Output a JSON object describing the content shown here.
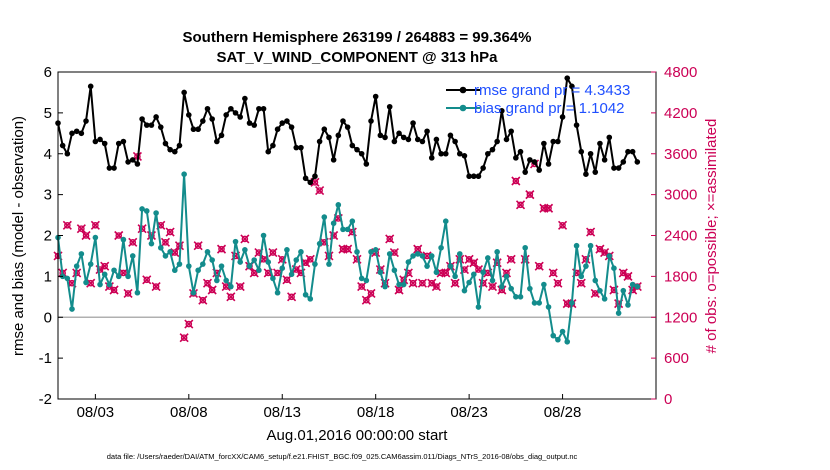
{
  "title_line1": "Southern Hemisphere 263199 / 264883 = 99.364%",
  "title_line2": "SAT_V_WIND_COMPONENT @ 313 hPa",
  "footer": "data file: /Users/raeder/DAI/ATM_forcXX/CAM6_setup/f.e21.FHIST_BGC.f09_025.CAM6assim.011/Diags_NTrS_2016-08/obs_diag_output.nc",
  "chart_data": {
    "type": "line",
    "xlabel": "Aug.01,2016 00:00:00 start",
    "ylabel": "rmse and bias (model - observation)",
    "y2label": "# of obs: o=possible; ×=assimilated",
    "xlim": [
      1,
      33
    ],
    "ylim": [
      -2,
      6
    ],
    "y2lim": [
      0,
      4800
    ],
    "x_tick_labels": [
      "08/03",
      "08/08",
      "08/13",
      "08/18",
      "08/23",
      "08/28"
    ],
    "x_tick_values": [
      3,
      8,
      13,
      18,
      23,
      28
    ],
    "y_ticks": [
      "-2",
      "-1",
      "0",
      "1",
      "2",
      "3",
      "4",
      "5",
      "6"
    ],
    "y2_ticks": [
      "0",
      "600",
      "1200",
      "1800",
      "2400",
      "3000",
      "3600",
      "4200",
      "4800"
    ],
    "legend_position": "top-right",
    "series": [
      {
        "name": "rmse grand pr = 4.3433",
        "color": "#000000",
        "x": [
          1.0,
          1.25,
          1.5,
          1.75,
          2.0,
          2.25,
          2.5,
          2.75,
          3.0,
          3.25,
          3.5,
          3.75,
          4.0,
          4.25,
          4.5,
          4.75,
          5.0,
          5.25,
          5.5,
          5.75,
          6.0,
          6.25,
          6.5,
          6.75,
          7.0,
          7.25,
          7.5,
          7.75,
          8.0,
          8.25,
          8.5,
          8.75,
          9.0,
          9.25,
          9.5,
          9.75,
          10.0,
          10.25,
          10.5,
          10.75,
          11.0,
          11.25,
          11.5,
          11.75,
          12.0,
          12.25,
          12.5,
          12.75,
          13.0,
          13.25,
          13.5,
          13.75,
          14.0,
          14.25,
          14.5,
          14.75,
          15.0,
          15.25,
          15.5,
          15.75,
          16.0,
          16.25,
          16.5,
          16.75,
          17.0,
          17.25,
          17.5,
          17.75,
          18.0,
          18.25,
          18.5,
          18.75,
          19.0,
          19.25,
          19.5,
          19.75,
          20.0,
          20.25,
          20.5,
          20.75,
          21.0,
          21.25,
          21.5,
          21.75,
          22.0,
          22.25,
          22.5,
          22.75,
          23.0,
          23.25,
          23.5,
          23.75,
          24.0,
          24.25,
          24.5,
          24.75,
          25.0,
          25.25,
          25.5,
          25.75,
          26.0,
          26.25,
          26.5,
          26.75,
          27.0,
          27.25,
          27.5,
          27.75,
          28.0,
          28.25,
          28.5,
          28.75,
          29.0,
          29.25,
          29.5,
          29.75,
          30.0,
          30.25,
          30.5,
          30.75,
          31.0,
          31.25,
          31.5,
          31.75,
          32.0
        ],
        "values": [
          4.75,
          4.2,
          4.0,
          4.5,
          4.55,
          4.5,
          4.8,
          5.65,
          4.3,
          4.35,
          4.25,
          3.65,
          3.65,
          4.25,
          4.3,
          3.8,
          3.85,
          3.75,
          4.85,
          4.7,
          4.7,
          4.9,
          4.65,
          4.25,
          4.1,
          4.05,
          4.2,
          5.5,
          4.95,
          4.6,
          4.6,
          4.8,
          5.1,
          4.85,
          4.3,
          4.45,
          4.95,
          5.1,
          5.0,
          4.9,
          5.35,
          4.75,
          4.7,
          5.1,
          5.1,
          4.05,
          4.2,
          4.6,
          4.75,
          4.8,
          4.65,
          4.15,
          4.15,
          3.4,
          3.3,
          3.45,
          4.3,
          4.6,
          4.4,
          3.85,
          4.45,
          4.8,
          4.65,
          4.2,
          4.1,
          4.0,
          3.75,
          4.8,
          5.4,
          4.45,
          4.4,
          5.15,
          4.3,
          4.5,
          4.4,
          4.35,
          4.75,
          4.35,
          4.3,
          4.55,
          3.9,
          4.35,
          4.0,
          4.0,
          4.45,
          4.3,
          4.0,
          3.95,
          3.45,
          3.45,
          3.45,
          3.65,
          4.0,
          4.1,
          4.3,
          5.05,
          4.35,
          4.55,
          3.9,
          4.05,
          3.55,
          3.85,
          3.8,
          3.6,
          4.25,
          3.75,
          4.3,
          4.3,
          4.9,
          5.85,
          5.65,
          4.7,
          4.05,
          3.5,
          4.0,
          3.55,
          4.25,
          3.85,
          4.4,
          3.65,
          3.65,
          3.8,
          4.05,
          4.05,
          3.8
        ],
        "markers": "filled-circle"
      },
      {
        "name": "bias grand pr = 1.1042",
        "color": "#138c8c",
        "x": [
          1.0,
          1.25,
          1.5,
          1.75,
          2.0,
          2.25,
          2.5,
          2.75,
          3.0,
          3.25,
          3.5,
          3.75,
          4.0,
          4.25,
          4.5,
          4.75,
          5.0,
          5.25,
          5.5,
          5.75,
          6.0,
          6.25,
          6.5,
          6.75,
          7.0,
          7.25,
          7.5,
          7.75,
          8.0,
          8.25,
          8.5,
          8.75,
          9.0,
          9.25,
          9.5,
          9.75,
          10.0,
          10.25,
          10.5,
          10.75,
          11.0,
          11.25,
          11.5,
          11.75,
          12.0,
          12.25,
          12.5,
          12.75,
          13.0,
          13.25,
          13.5,
          13.75,
          14.0,
          14.25,
          14.5,
          14.75,
          15.0,
          15.25,
          15.5,
          15.75,
          16.0,
          16.25,
          16.5,
          16.75,
          17.0,
          17.25,
          17.5,
          17.75,
          18.0,
          18.25,
          18.5,
          18.75,
          19.0,
          19.25,
          19.5,
          19.75,
          20.0,
          20.25,
          20.5,
          20.75,
          21.0,
          21.25,
          21.5,
          21.75,
          22.0,
          22.25,
          22.5,
          22.75,
          23.0,
          23.25,
          23.5,
          23.75,
          24.0,
          24.25,
          24.5,
          24.75,
          25.0,
          25.25,
          25.5,
          25.75,
          26.0,
          26.25,
          26.5,
          26.75,
          27.0,
          27.25,
          27.5,
          27.75,
          28.0,
          28.25,
          28.5,
          28.75,
          29.0,
          29.25,
          29.5,
          29.75,
          30.0,
          30.25,
          30.5,
          30.75,
          31.0,
          31.25,
          31.5,
          31.75,
          32.0
        ],
        "values": [
          1.95,
          1.0,
          0.95,
          0.2,
          1.25,
          1.55,
          0.85,
          1.3,
          1.95,
          0.8,
          1.05,
          0.8,
          1.15,
          1.0,
          1.9,
          1.0,
          1.5,
          0.6,
          2.65,
          2.6,
          1.8,
          2.55,
          1.7,
          1.5,
          1.6,
          1.15,
          1.3,
          3.5,
          1.25,
          0.6,
          1.15,
          1.3,
          1.6,
          1.4,
          0.9,
          1.25,
          0.9,
          0.75,
          1.85,
          1.35,
          1.65,
          1.25,
          1.4,
          1.15,
          2.0,
          1.35,
          0.95,
          0.6,
          1.2,
          1.65,
          1.05,
          1.4,
          1.6,
          0.55,
          0.45,
          1.3,
          1.8,
          2.45,
          1.3,
          2.3,
          2.75,
          2.15,
          2.15,
          2.35,
          1.6,
          0.95,
          0.9,
          1.6,
          1.65,
          1.1,
          0.75,
          1.55,
          1.15,
          0.8,
          0.8,
          1.35,
          1.5,
          1.55,
          1.5,
          1.25,
          1.5,
          1.1,
          1.7,
          2.35,
          1.25,
          1.0,
          1.55,
          0.65,
          0.85,
          1.05,
          0.25,
          1.1,
          1.45,
          0.9,
          1.6,
          0.75,
          1.0,
          0.7,
          0.5,
          0.5,
          1.7,
          0.7,
          0.35,
          0.35,
          0.8,
          0.25,
          -0.45,
          -0.55,
          -0.35,
          -0.6,
          0.35,
          1.75,
          1.0,
          1.25,
          1.75,
          0.9,
          0.65,
          0.45,
          1.5,
          1.2,
          0.1,
          0.65,
          0.3,
          0.8,
          0.75
        ],
        "markers": "filled-circle"
      },
      {
        "name": "",
        "axis": "right",
        "color": "#cc0055",
        "x": [
          1.0,
          1.25,
          1.5,
          1.75,
          2.0,
          2.25,
          2.5,
          2.75,
          3.0,
          3.25,
          3.5,
          3.75,
          4.0,
          4.25,
          4.5,
          4.75,
          5.0,
          5.25,
          5.5,
          5.75,
          6.0,
          6.25,
          6.5,
          6.75,
          7.0,
          7.25,
          7.5,
          7.75,
          8.0,
          8.25,
          8.5,
          8.75,
          9.0,
          9.25,
          9.5,
          9.75,
          10.0,
          10.25,
          10.5,
          10.75,
          11.0,
          11.25,
          11.5,
          11.75,
          12.0,
          12.25,
          12.5,
          12.75,
          13.0,
          13.25,
          13.5,
          13.75,
          14.0,
          14.25,
          14.5,
          14.75,
          15.0,
          15.25,
          15.5,
          15.75,
          16.0,
          16.25,
          16.5,
          16.75,
          17.0,
          17.25,
          17.5,
          17.75,
          18.0,
          18.25,
          18.5,
          18.75,
          19.0,
          19.25,
          19.5,
          19.75,
          20.0,
          20.25,
          20.5,
          20.75,
          21.0,
          21.25,
          21.5,
          21.75,
          22.0,
          22.25,
          22.5,
          22.75,
          23.0,
          23.25,
          23.5,
          23.75,
          24.0,
          24.25,
          24.5,
          24.75,
          25.0,
          25.25,
          25.5,
          25.75,
          26.0,
          26.25,
          26.5,
          26.75,
          27.0,
          27.25,
          27.5,
          27.75,
          28.0,
          28.25,
          28.5,
          28.75,
          29.0,
          29.25,
          29.5,
          29.75,
          30.0,
          30.25,
          30.5,
          30.75,
          31.0,
          31.25,
          31.5,
          31.75,
          32.0
        ],
        "values": [
          2100,
          1850,
          2550,
          1700,
          1850,
          2500,
          2400,
          1700,
          2550,
          1900,
          1950,
          1650,
          1600,
          2400,
          1850,
          1550,
          2300,
          3560,
          2500,
          1750,
          2400,
          1650,
          2550,
          2300,
          2450,
          2150,
          2250,
          900,
          1100,
          1550,
          2250,
          1450,
          1700,
          1600,
          1850,
          2200,
          1650,
          1500,
          2100,
          1650,
          2350,
          1950,
          1850,
          2150,
          2050,
          1850,
          2150,
          1850,
          2050,
          1750,
          1500,
          1900,
          1850,
          2000,
          2050,
          3180,
          3060,
          2300,
          2100,
          2400,
          2650,
          2200,
          2200,
          2450,
          2050,
          1650,
          1450,
          1550,
          2150,
          1900,
          1700,
          2350,
          2150,
          1600,
          1750,
          1850,
          1700,
          2200,
          1700,
          2100,
          1700,
          1650,
          1850,
          1850,
          1950,
          1700,
          2050,
          1900,
          2050,
          2000,
          1900,
          1700,
          1850,
          1650,
          2000,
          1600,
          1850,
          2050,
          3200,
          2850,
          2050,
          3000,
          3450,
          1950,
          2800,
          2800,
          1850,
          1700,
          2550,
          1400,
          1400,
          1850,
          1700,
          2050,
          2450,
          1550,
          2200,
          2150,
          2100,
          1600,
          1400,
          1850,
          1800,
          1600,
          1650
        ]
      }
    ]
  }
}
